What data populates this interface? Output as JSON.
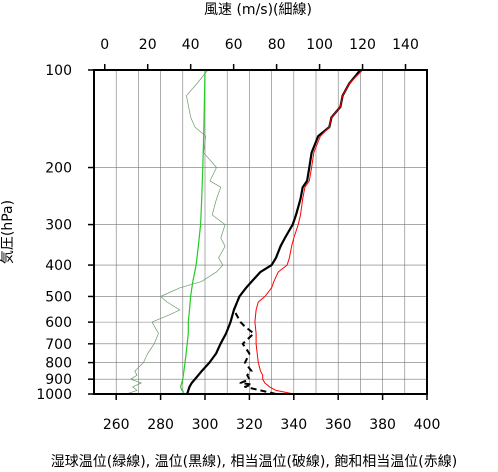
{
  "chart_data": {
    "type": "line",
    "top_axis_label": "風速 (m/s)(細線)",
    "ylabel": "気圧(hPa)",
    "bottom_caption": "湿球温位(緑線), 温位(黒線), 相当温位(破線), 飽和相当温位(赤線)",
    "x_temp": {
      "range": [
        250,
        400
      ],
      "ticks": [
        260,
        280,
        300,
        320,
        340,
        360,
        380,
        400
      ]
    },
    "x_wind": {
      "range": [
        -5,
        150
      ],
      "ticks": [
        0,
        20,
        40,
        60,
        80,
        100,
        120,
        140
      ]
    },
    "y": {
      "scale": "log",
      "range": [
        1000,
        100
      ],
      "ticks": [
        100,
        200,
        300,
        400,
        500,
        600,
        700,
        800,
        900,
        1000
      ]
    },
    "grid": true,
    "colors": {
      "wet_bulb": "#22cc22",
      "theta": "#000000",
      "theta_e": "#000000",
      "theta_es": "#ff0000",
      "wind": "#6a9a6a"
    },
    "series": [
      {
        "key": "wet_bulb",
        "axis": "temp",
        "p": [
          990,
          970,
          950,
          925,
          900,
          850,
          800,
          750,
          700,
          650,
          600,
          550,
          500,
          450,
          400,
          350,
          300,
          250,
          200,
          150,
          100
        ],
        "v": [
          290.5,
          289.5,
          289,
          289.5,
          290,
          290.5,
          291,
          291.5,
          292,
          292.5,
          292.5,
          293,
          293.5,
          294.5,
          296,
          297,
          298,
          298.5,
          299,
          299.5,
          300
        ]
      },
      {
        "key": "theta",
        "axis": "temp",
        "p": [
          1000,
          975,
          950,
          925,
          900,
          875,
          850,
          800,
          750,
          700,
          650,
          600,
          550,
          500,
          470,
          450,
          420,
          400,
          380,
          350,
          330,
          300,
          280,
          250,
          230,
          220,
          200,
          180,
          160,
          150,
          140,
          130,
          120,
          110,
          100
        ],
        "v": [
          292,
          292.5,
          293,
          294,
          295.5,
          297,
          298.5,
          302,
          305,
          307,
          309.5,
          311.5,
          313,
          315.5,
          318.5,
          321,
          325,
          330,
          332,
          334,
          336,
          339.5,
          341,
          343,
          344,
          346,
          347,
          348,
          351,
          356,
          357,
          361,
          362,
          365,
          370
        ]
      },
      {
        "key": "theta_e",
        "axis": "temp",
        "p": [
          1000,
          975,
          950,
          935,
          925,
          900,
          875,
          850,
          800,
          750,
          700,
          650,
          620,
          600,
          550,
          500
        ],
        "v": [
          332,
          325,
          318,
          321,
          316,
          320,
          319,
          321,
          318,
          320,
          317,
          322,
          318,
          316,
          313,
          315.5
        ]
      },
      {
        "key": "theta_es",
        "axis": "temp",
        "p": [
          1000,
          975,
          950,
          925,
          900,
          875,
          850,
          800,
          750,
          700,
          650,
          600,
          550,
          520,
          500,
          470,
          450,
          420,
          400,
          380,
          350,
          330,
          300,
          280,
          250,
          230,
          220,
          200,
          180,
          160,
          150,
          140,
          130,
          120,
          110,
          100
        ],
        "v": [
          340,
          332,
          329,
          327,
          326,
          326,
          325,
          324,
          323.5,
          323,
          323,
          322.5,
          323,
          324,
          327,
          330,
          331,
          333,
          337,
          338,
          339,
          340,
          342,
          343,
          344,
          345,
          347,
          348,
          349,
          352,
          356,
          357,
          361,
          362,
          365,
          371
        ]
      },
      {
        "key": "wind",
        "axis": "wind",
        "p": [
          1000,
          975,
          950,
          925,
          900,
          875,
          850,
          800,
          750,
          700,
          650,
          600,
          570,
          550,
          520,
          500,
          470,
          450,
          420,
          400,
          380,
          350,
          330,
          300,
          280,
          250,
          230,
          220,
          200,
          180,
          160,
          150,
          140,
          120,
          110,
          100
        ],
        "v": [
          10,
          15,
          13,
          17,
          12,
          15,
          14,
          18,
          20,
          23,
          25,
          22,
          30,
          35,
          29,
          26,
          35,
          45,
          52,
          55,
          53,
          56,
          54,
          56,
          50,
          52,
          54,
          49,
          52,
          46,
          47,
          42,
          40,
          38,
          43,
          48
        ]
      }
    ]
  }
}
